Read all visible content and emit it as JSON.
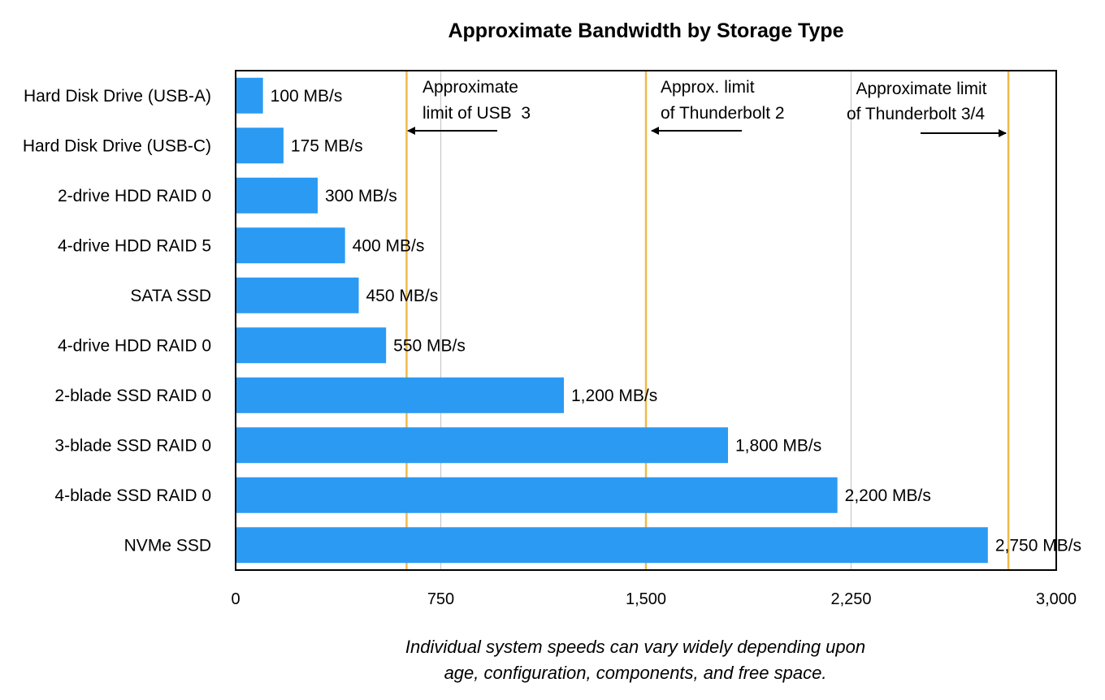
{
  "chart_data": {
    "type": "bar",
    "orientation": "horizontal",
    "title": "Approximate Bandwidth by Storage Type",
    "xlabel": "",
    "ylabel": "",
    "xlim": [
      0,
      3000
    ],
    "x_ticks": [
      0,
      750,
      1500,
      2250,
      3000
    ],
    "x_tick_labels": [
      "0",
      "750",
      "1,500",
      "2,250",
      "3,000"
    ],
    "grid": "vertical",
    "categories": [
      "Hard Disk Drive (USB-A)",
      "Hard Disk Drive (USB-C)",
      "2-drive HDD RAID 0",
      "4-drive HDD RAID 5",
      "SATA SSD",
      "4-drive HDD RAID 0",
      "2-blade SSD RAID 0",
      "3-blade SSD RAID 0",
      "4-blade SSD RAID 0",
      "NVMe SSD"
    ],
    "values": [
      100,
      175,
      300,
      400,
      450,
      550,
      1200,
      1800,
      2200,
      2750
    ],
    "value_labels": [
      "100 MB/s",
      "175 MB/s",
      "300 MB/s",
      "400 MB/s",
      "450 MB/s",
      "550 MB/s",
      "1,200 MB/s",
      "1,800 MB/s",
      "2,200 MB/s",
      "2,750 MB/s"
    ],
    "reference_lines": [
      {
        "value": 625,
        "label_lines": [
          "Approximate",
          "limit of USB  3"
        ],
        "arrow": "left"
      },
      {
        "value": 1500,
        "label_lines": [
          "Approx. limit",
          "of Thunderbolt 2"
        ],
        "arrow": "left"
      },
      {
        "value": 2825,
        "label_lines": [
          "Approximate limit",
          "of Thunderbolt 3/4"
        ],
        "arrow": "right"
      }
    ],
    "footnote_lines": [
      "Individual system speeds can vary widely depending upon",
      "age, configuration, components, and free space."
    ],
    "colors": {
      "bar": "#2B9AF3",
      "reference_line": "#F0B94B",
      "grid": "#C8C8C8",
      "frame": "#000000"
    }
  }
}
